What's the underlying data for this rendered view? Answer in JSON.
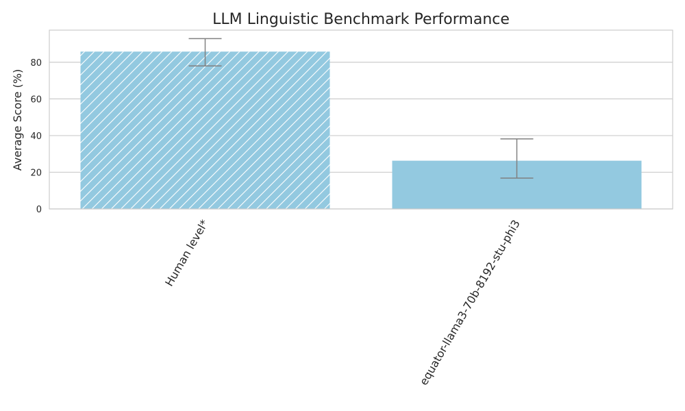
{
  "chart_data": {
    "type": "bar",
    "title": "LLM Linguistic Benchmark Performance",
    "xlabel": "",
    "ylabel": "Average Score (%)",
    "ylim": [
      0,
      97.5
    ],
    "yticks": [
      0,
      20,
      40,
      60,
      80
    ],
    "categories": [
      "Human level*",
      "equator-llama3-70b-8192-stu-phi3"
    ],
    "values": [
      85.8,
      26.3
    ],
    "error_low": [
      78.0,
      16.8
    ],
    "error_high": [
      92.9,
      38.2
    ],
    "hatched": [
      true,
      false
    ],
    "bar_color": "#93c9e0",
    "error_color": "#808080",
    "grid": true,
    "grid_axis": "y",
    "tick_label_rotation": -60
  }
}
